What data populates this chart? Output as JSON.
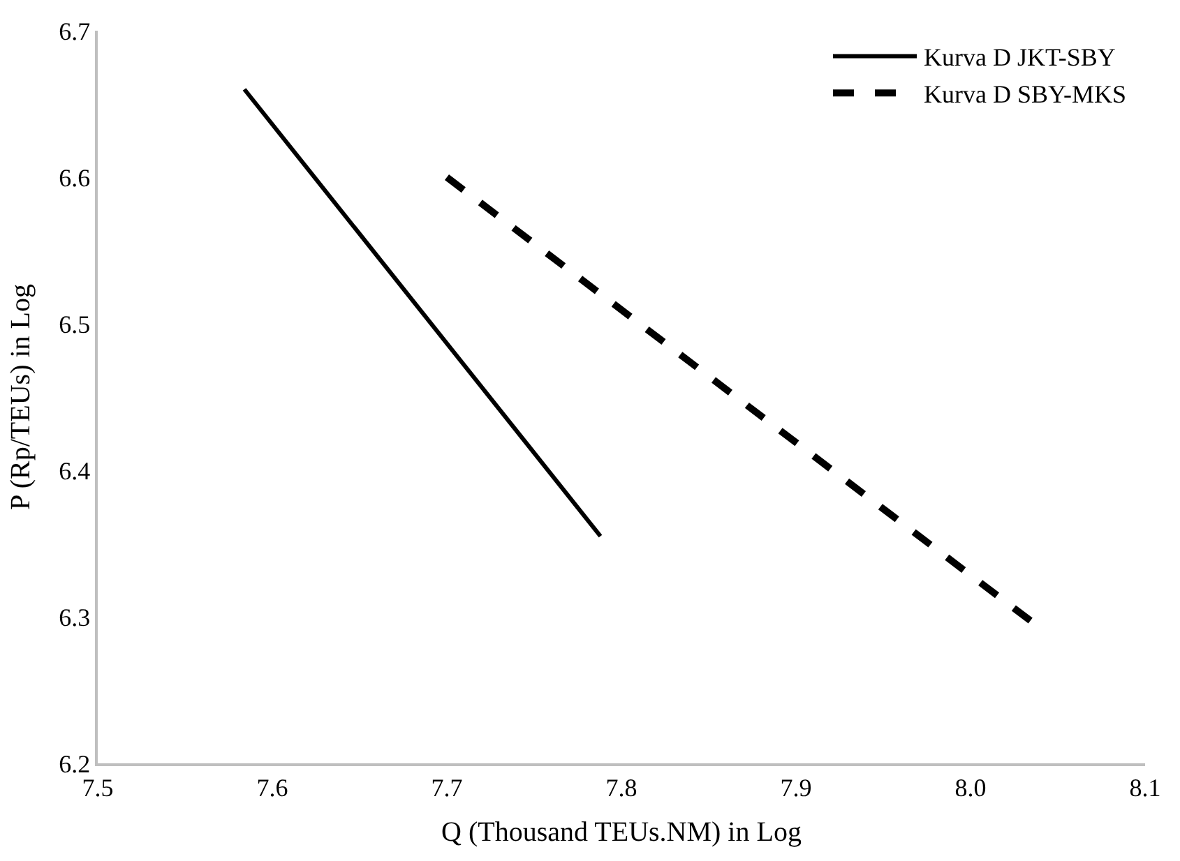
{
  "chart_data": {
    "type": "line",
    "xlabel": "Q (Thousand TEUs.NM) in Log",
    "ylabel": "P (Rp/TEUs) in Log",
    "xlim": [
      7.5,
      8.1
    ],
    "xticks": [
      7.5,
      7.6,
      7.7,
      7.8,
      7.9,
      {
        "value": 8.0,
        "label": "8.0"
      },
      8.1
    ],
    "ylim": [
      6.2,
      6.7
    ],
    "yticks": [
      6.2,
      6.3,
      6.4,
      6.5,
      6.6,
      6.7
    ],
    "legend": "top right",
    "marker": "none",
    "series": [
      {
        "name": "Kurva D JKT-SBY",
        "color": "#000000",
        "line_style": "solid",
        "x": [
          7.584,
          7.788
        ],
        "values": [
          6.66,
          6.355
        ]
      },
      {
        "name": "Kurva D SBY-MKS",
        "color": "#000000",
        "line_style": "dashed",
        "x": [
          7.7,
          8.038
        ],
        "values": [
          6.6,
          6.294
        ]
      }
    ]
  }
}
